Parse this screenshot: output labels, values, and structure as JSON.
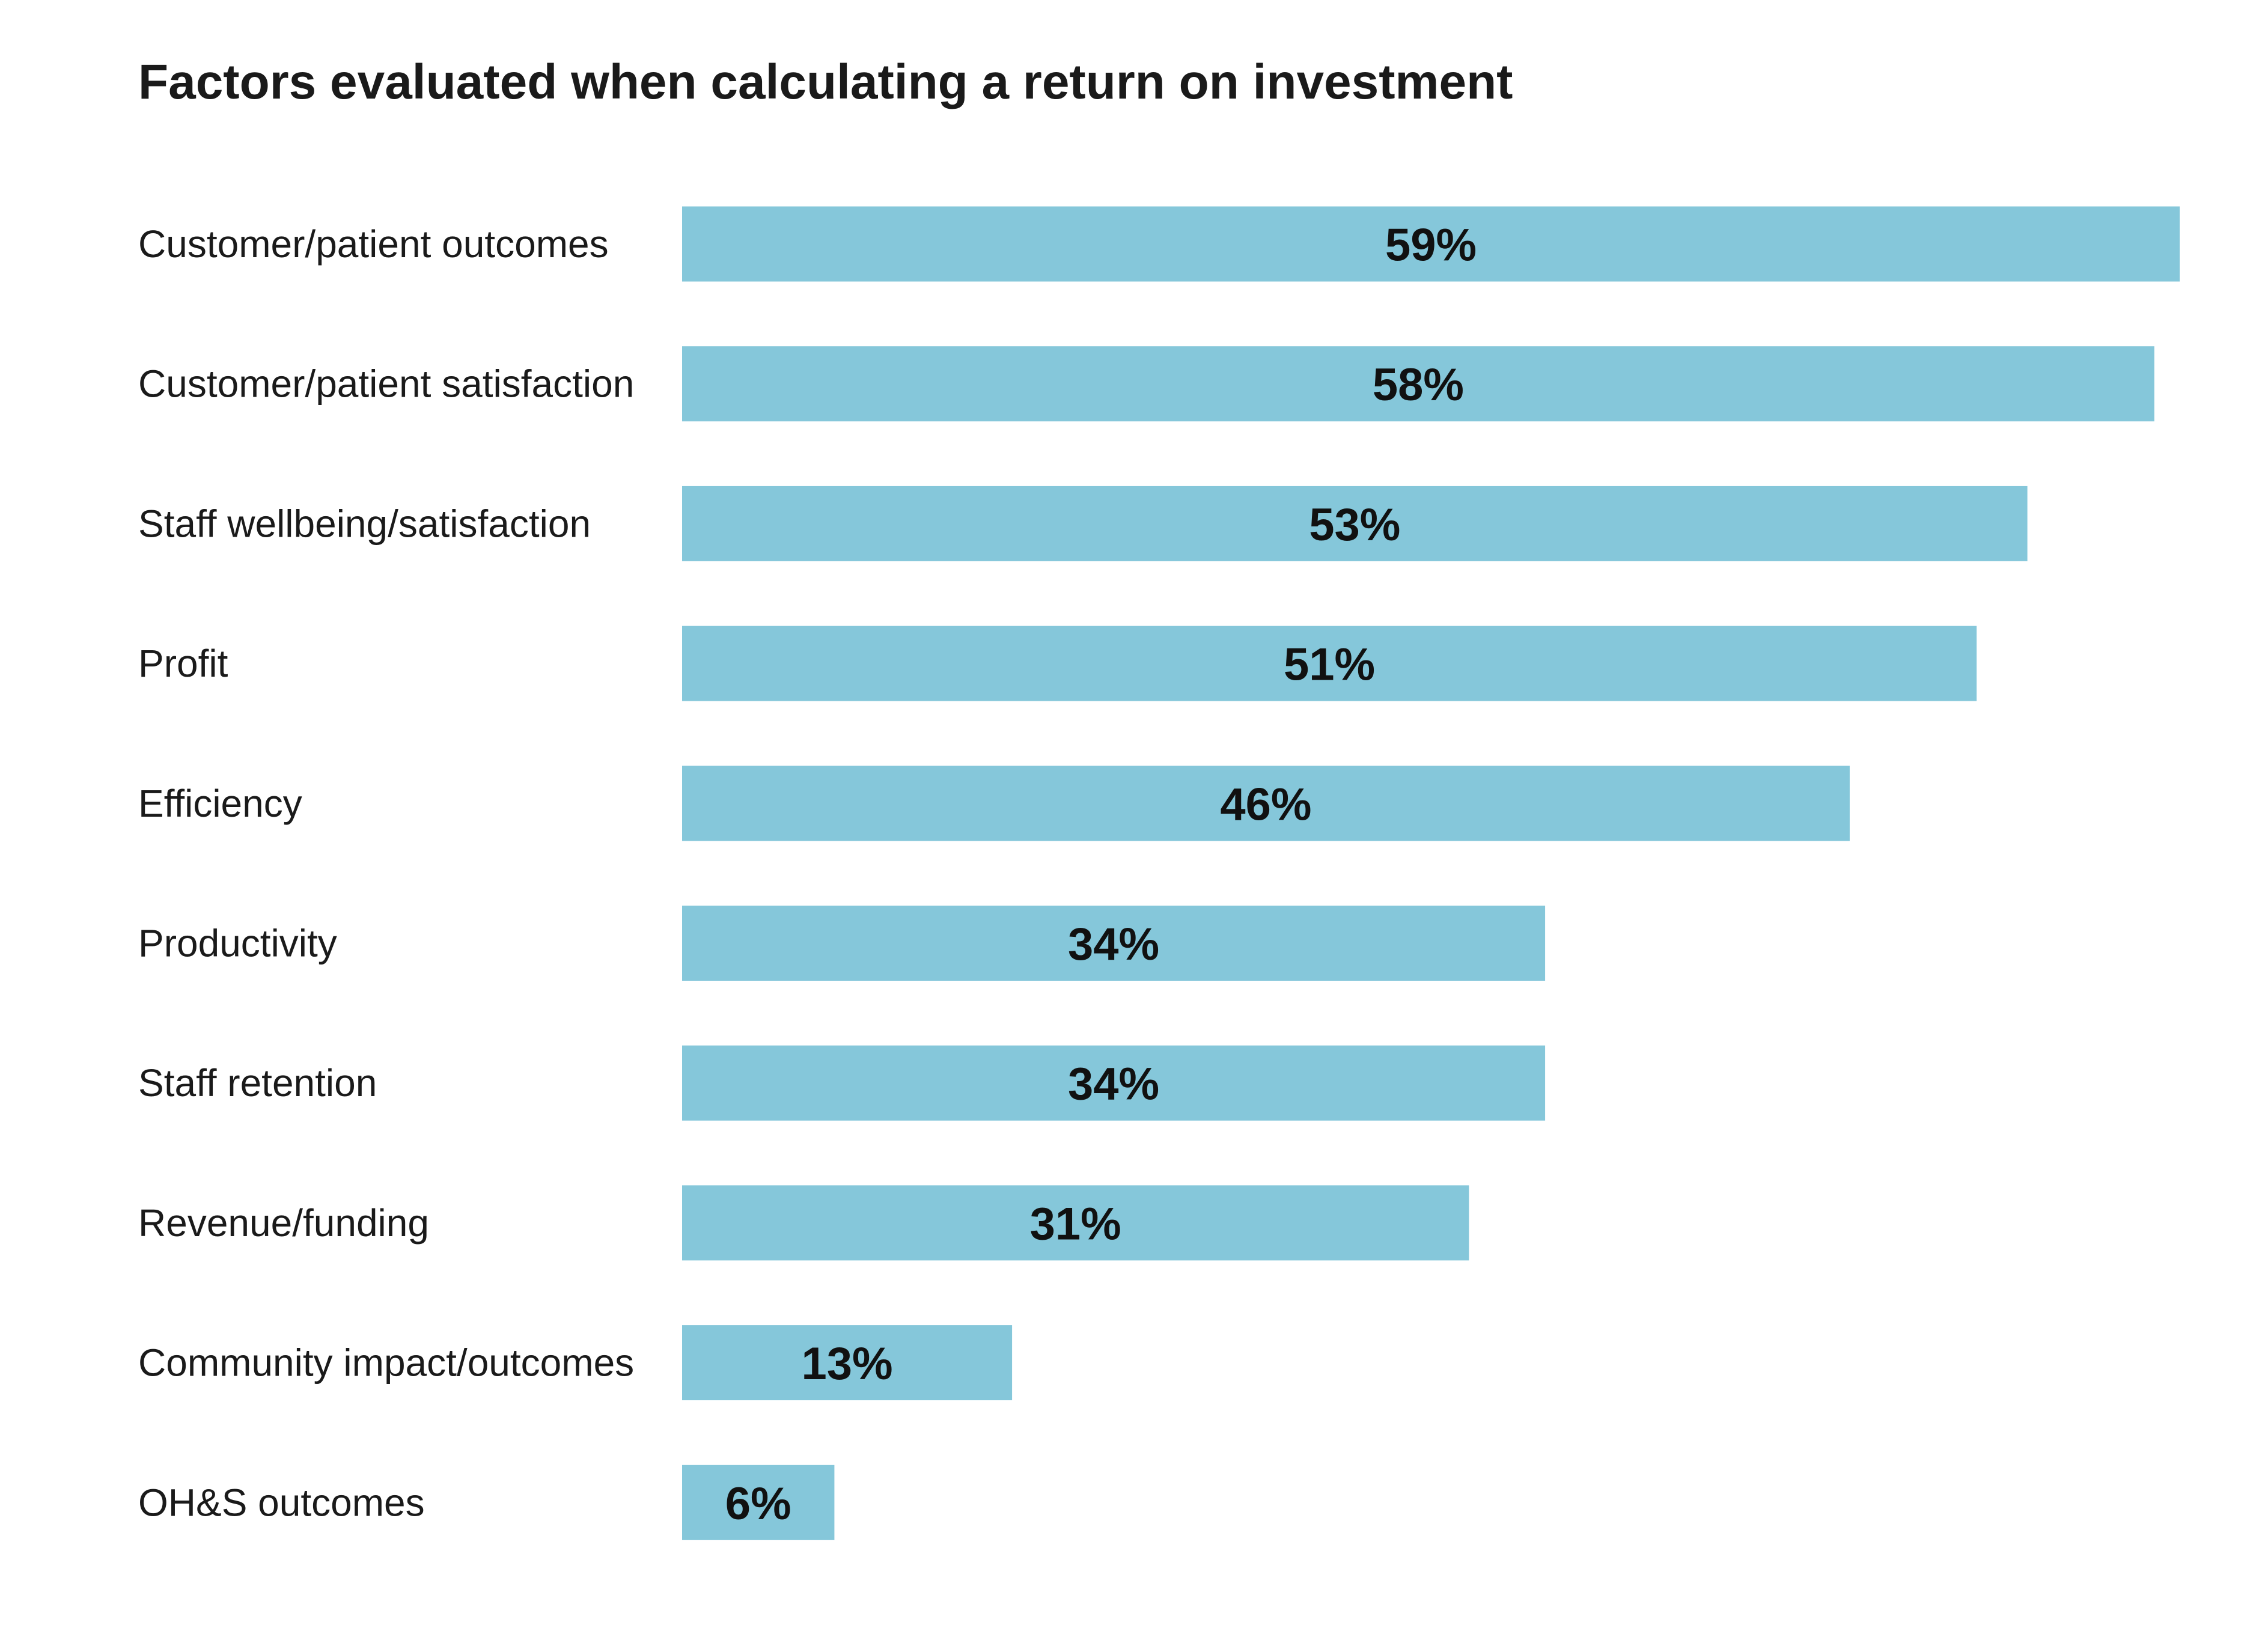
{
  "chart_data": {
    "type": "bar",
    "orientation": "horizontal",
    "title": "Factors evaluated when calculating a return on investment",
    "xlabel": "",
    "ylabel": "",
    "value_suffix": "%",
    "xlim": [
      0,
      59
    ],
    "grid": false,
    "legend": "none",
    "bar_color": "#85C7DA",
    "categories": [
      "Customer/patient outcomes",
      "Customer/patient satisfaction",
      "Staff wellbeing/satisfaction",
      "Profit",
      "Efficiency",
      "Productivity",
      "Staff retention",
      "Revenue/funding",
      "Community impact/outcomes",
      "OH&S outcomes"
    ],
    "values": [
      59,
      58,
      53,
      51,
      46,
      34,
      34,
      31,
      13,
      6
    ],
    "data_labels": [
      "59%",
      "58%",
      "53%",
      "51%",
      "46%",
      "34%",
      "34%",
      "31%",
      "13%",
      "6%"
    ]
  }
}
